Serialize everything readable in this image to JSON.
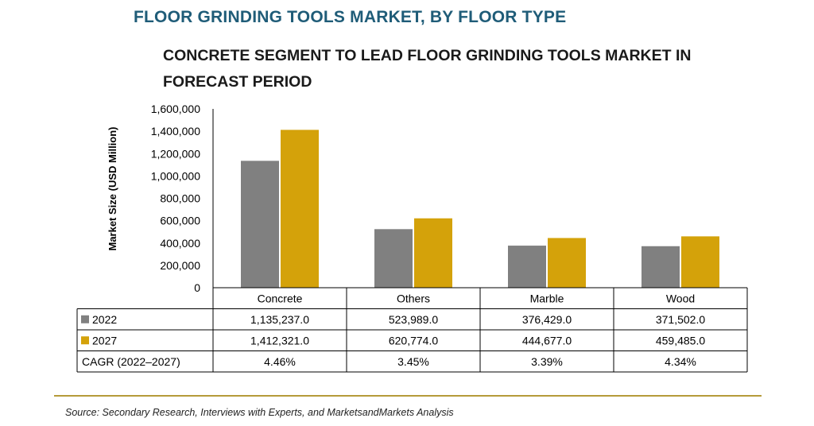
{
  "title": "FLOOR GRINDING TOOLS MARKET, BY FLOOR TYPE",
  "subtitle": "CONCRETE SEGMENT TO LEAD FLOOR GRINDING TOOLS MARKET IN FORECAST PERIOD",
  "source": "Source: Secondary Research, Interviews with Experts, and MarketsandMarkets Analysis",
  "chart_data": {
    "type": "bar",
    "title": "FLOOR GRINDING TOOLS MARKET, BY FLOOR TYPE",
    "subtitle": "CONCRETE SEGMENT TO LEAD FLOOR GRINDING TOOLS MARKET IN FORECAST PERIOD",
    "xlabel": "",
    "ylabel": "Market Size (USD Million)",
    "ylim": [
      0,
      1600000
    ],
    "yticks": [
      "1,600,000",
      "1,400,000",
      "1,200,000",
      "1,000,000",
      "800,000",
      "600,000",
      "400,000",
      "200,000",
      "0"
    ],
    "ytick_values": [
      1600000,
      1400000,
      1200000,
      1000000,
      800000,
      600000,
      400000,
      200000,
      0
    ],
    "categories": [
      "Concrete",
      "Others",
      "Marble",
      "Wood"
    ],
    "series": [
      {
        "name": "2022",
        "color": "#808080",
        "values": [
          1135237.0,
          523989.0,
          376429.0,
          371502.0
        ],
        "labels": [
          "1,135,237.0",
          "523,989.0",
          "376,429.0",
          "371,502.0"
        ]
      },
      {
        "name": "2027",
        "color": "#d4a20a",
        "values": [
          1412321.0,
          620774.0,
          444677.0,
          459485.0
        ],
        "labels": [
          "1,412,321.0",
          "620,774.0",
          "444,677.0",
          "459,485.0"
        ]
      }
    ],
    "extra_row": {
      "name": "CAGR (2022–2027)",
      "labels": [
        "4.46%",
        "3.45%",
        "3.39%",
        "4.34%"
      ]
    },
    "grid": false,
    "legend": "data-table"
  }
}
